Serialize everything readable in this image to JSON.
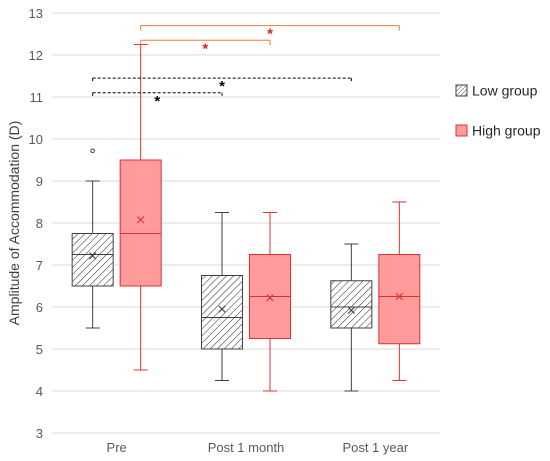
{
  "chart_data": {
    "type": "box",
    "title": "",
    "xlabel": "",
    "ylabel": "Amplitude of Accommodation (D)",
    "ylim": [
      3,
      13
    ],
    "yticks": [
      3,
      4,
      5,
      6,
      7,
      8,
      9,
      10,
      11,
      12,
      13
    ],
    "grid": true,
    "legend_position": "right",
    "categories": [
      "Pre",
      "Post 1 month",
      "Post 1 year"
    ],
    "series": [
      {
        "name": "Low group",
        "color": "#404040",
        "fill": "hatched",
        "boxes": [
          {
            "min": 5.5,
            "q1": 6.5,
            "median": 7.25,
            "mean": 7.22,
            "q3": 7.75,
            "max": 9.0,
            "outliers": [
              9.72
            ]
          },
          {
            "min": 4.25,
            "q1": 5.0,
            "median": 5.75,
            "mean": 5.95,
            "q3": 6.75,
            "max": 8.25,
            "outliers": []
          },
          {
            "min": 4.0,
            "q1": 5.5,
            "median": 6.0,
            "mean": 5.92,
            "q3": 6.625,
            "max": 7.5,
            "outliers": []
          }
        ]
      },
      {
        "name": "High group",
        "color": "#e03030",
        "fill": "#ff9b9b",
        "boxes": [
          {
            "min": 4.5,
            "q1": 6.5,
            "median": 7.75,
            "mean": 8.08,
            "q3": 9.5,
            "max": 12.25,
            "outliers": []
          },
          {
            "min": 4.0,
            "q1": 5.25,
            "median": 6.25,
            "mean": 6.22,
            "q3": 7.25,
            "max": 8.25,
            "outliers": []
          },
          {
            "min": 4.25,
            "q1": 5.125,
            "median": 6.25,
            "mean": 6.25,
            "q3": 7.25,
            "max": 8.5,
            "outliers": []
          }
        ]
      }
    ],
    "annotations": [
      {
        "series": "High group",
        "from": "Pre",
        "to": "Post 1 year",
        "y": 12.7,
        "label": "*",
        "color": "#ed7d31",
        "style": "solid"
      },
      {
        "series": "High group",
        "from": "Pre",
        "to": "Post 1 month",
        "y": 12.35,
        "label": "*",
        "color": "#ed7d31",
        "style": "solid"
      },
      {
        "series": "Low group",
        "from": "Pre",
        "to": "Post 1 year",
        "y": 11.45,
        "label": "*",
        "color": "#000000",
        "style": "dashed"
      },
      {
        "series": "Low group",
        "from": "Pre",
        "to": "Post 1 month",
        "y": 11.1,
        "label": "*",
        "color": "#000000",
        "style": "dashed"
      }
    ]
  }
}
